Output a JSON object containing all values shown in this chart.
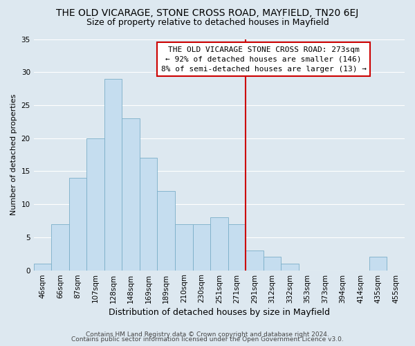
{
  "title": "THE OLD VICARAGE, STONE CROSS ROAD, MAYFIELD, TN20 6EJ",
  "subtitle": "Size of property relative to detached houses in Mayfield",
  "xlabel": "Distribution of detached houses by size in Mayfield",
  "ylabel": "Number of detached properties",
  "bar_color": "#c5ddef",
  "bar_edge_color": "#7aaec8",
  "background_color": "#dde8f0",
  "grid_color": "#ffffff",
  "categories": [
    "46sqm",
    "66sqm",
    "87sqm",
    "107sqm",
    "128sqm",
    "148sqm",
    "169sqm",
    "189sqm",
    "210sqm",
    "230sqm",
    "251sqm",
    "271sqm",
    "291sqm",
    "312sqm",
    "332sqm",
    "353sqm",
    "373sqm",
    "394sqm",
    "414sqm",
    "435sqm",
    "455sqm"
  ],
  "values": [
    1,
    7,
    14,
    20,
    29,
    23,
    17,
    12,
    7,
    7,
    8,
    7,
    3,
    2,
    1,
    0,
    0,
    0,
    0,
    2,
    0
  ],
  "ylim": [
    0,
    35
  ],
  "yticks": [
    0,
    5,
    10,
    15,
    20,
    25,
    30,
    35
  ],
  "vline_x": 11.5,
  "vline_color": "#cc0000",
  "annotation_title": "THE OLD VICARAGE STONE CROSS ROAD: 273sqm",
  "annotation_line1": "← 92% of detached houses are smaller (146)",
  "annotation_line2": "8% of semi-detached houses are larger (13) →",
  "annotation_box_color": "#ffffff",
  "annotation_box_edge": "#cc0000",
  "footer_line1": "Contains HM Land Registry data © Crown copyright and database right 2024.",
  "footer_line2": "Contains public sector information licensed under the Open Government Licence v3.0.",
  "title_fontsize": 10,
  "subtitle_fontsize": 9,
  "xlabel_fontsize": 9,
  "ylabel_fontsize": 8,
  "tick_fontsize": 7.5,
  "annotation_fontsize": 8,
  "footer_fontsize": 6.5
}
